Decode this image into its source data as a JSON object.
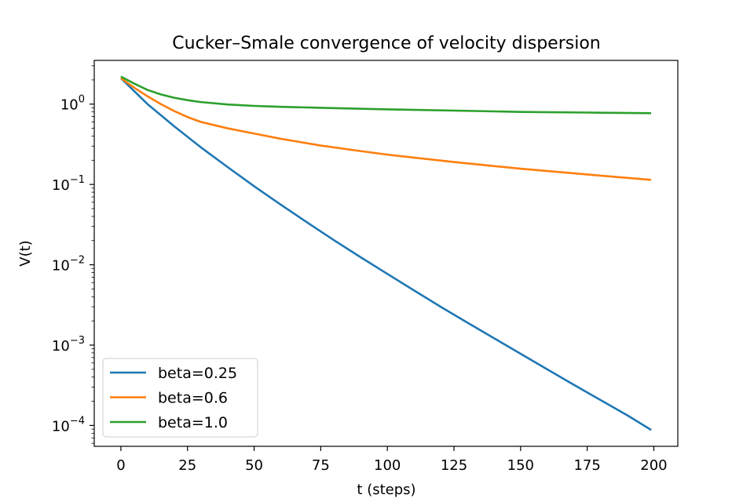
{
  "chart_data": {
    "type": "line",
    "title": "Cucker–Smale convergence of velocity dispersion",
    "xlabel": "t (steps)",
    "ylabel": "V(t)",
    "xscale": "linear",
    "yscale": "log",
    "xlim": [
      -10,
      209
    ],
    "ylim": [
      5.5e-05,
      3.5
    ],
    "xticks": [
      0,
      25,
      50,
      75,
      100,
      125,
      150,
      175,
      200
    ],
    "xtick_labels": [
      "0",
      "25",
      "50",
      "75",
      "100",
      "125",
      "150",
      "175",
      "200"
    ],
    "yticks": [
      1,
      0.1,
      0.01,
      0.001,
      0.0001
    ],
    "ytick_labels": [
      {
        "base": "10",
        "exp": "0"
      },
      {
        "base": "10",
        "exp": "−1"
      },
      {
        "base": "10",
        "exp": "−2"
      },
      {
        "base": "10",
        "exp": "−3"
      },
      {
        "base": "10",
        "exp": "−4"
      }
    ],
    "grid": false,
    "legend_position": "lower-left",
    "series": [
      {
        "name": "beta=0.25",
        "color": "#1f77b4",
        "x": [
          0,
          10,
          20,
          30,
          40,
          50,
          60,
          70,
          80,
          90,
          100,
          110,
          120,
          130,
          140,
          150,
          160,
          170,
          180,
          190,
          199
        ],
        "y": [
          2.1,
          1.0,
          0.53,
          0.29,
          0.165,
          0.095,
          0.056,
          0.0335,
          0.0202,
          0.0124,
          0.0077,
          0.0048,
          0.003,
          0.00191,
          0.00122,
          0.00078,
          0.0005,
          0.00032,
          0.000207,
          0.000134,
          8.8e-05
        ]
      },
      {
        "name": "beta=0.6",
        "color": "#ff7f0e",
        "x": [
          0,
          5,
          10,
          15,
          20,
          25,
          30,
          40,
          50,
          60,
          75,
          90,
          100,
          125,
          150,
          175,
          199
        ],
        "y": [
          2.1,
          1.6,
          1.25,
          1.0,
          0.82,
          0.69,
          0.6,
          0.5,
          0.43,
          0.37,
          0.305,
          0.26,
          0.235,
          0.19,
          0.157,
          0.133,
          0.114
        ]
      },
      {
        "name": "beta=1.0",
        "color": "#2ca02c",
        "x": [
          0,
          5,
          10,
          15,
          20,
          25,
          30,
          40,
          50,
          60,
          75,
          100,
          125,
          150,
          175,
          199
        ],
        "y": [
          2.2,
          1.8,
          1.5,
          1.32,
          1.2,
          1.12,
          1.06,
          0.99,
          0.95,
          0.925,
          0.9,
          0.86,
          0.83,
          0.8,
          0.785,
          0.77
        ]
      }
    ]
  }
}
